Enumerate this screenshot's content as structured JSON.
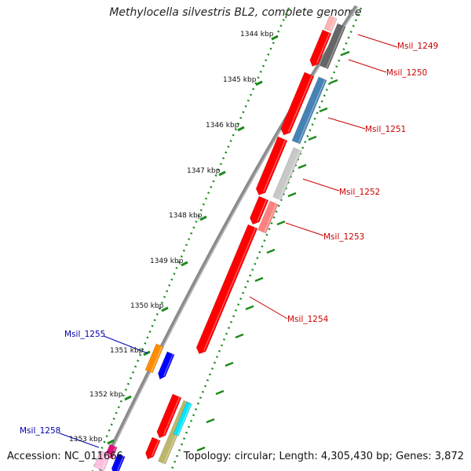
{
  "title": "Methylocella silvestris BL2, complete genome",
  "footer": {
    "accession": "Accession: NC_011666",
    "summary": "Topology: circular; Length: 4,305,430 bp; Genes: 3,872"
  },
  "colors": {
    "backbone": "#8c8c8c",
    "tick_dotted": "#1a8a1a",
    "tick_major": "#1a8a1a",
    "label_forward": "#cc0000",
    "label_reverse": "#0000aa"
  },
  "kbp_labels": [
    "1344 kbp",
    "1345 kbp",
    "1346 kbp",
    "1347 kbp",
    "1348 kbp",
    "1349 kbp",
    "1350 kbp",
    "1351 kbp",
    "1352 kbp",
    "1353 kbp"
  ],
  "gene_labels": [
    {
      "name": "Msil_1249",
      "strand": "forward"
    },
    {
      "name": "Msil_1250",
      "strand": "forward"
    },
    {
      "name": "Msil_1251",
      "strand": "forward"
    },
    {
      "name": "Msil_1252",
      "strand": "forward"
    },
    {
      "name": "Msil_1253",
      "strand": "forward"
    },
    {
      "name": "Msil_1254",
      "strand": "forward"
    },
    {
      "name": "Msil_1255",
      "strand": "reverse"
    },
    {
      "name": "Msil_1258",
      "strand": "reverse"
    }
  ],
  "feature_colors": {
    "cds": "#ff0000",
    "gray_dark": "#666666",
    "steel_blue": "#4682b4",
    "light_gray": "#c8c8c8",
    "light_red": "#ff8080",
    "pale_pink": "#ffb4b4",
    "orange": "#ff8c00",
    "blue": "#0000ff",
    "khaki": "#bdb76b",
    "cyan": "#00e5ff",
    "magenta": "#e0107a",
    "pink": "#ffc0e0"
  }
}
